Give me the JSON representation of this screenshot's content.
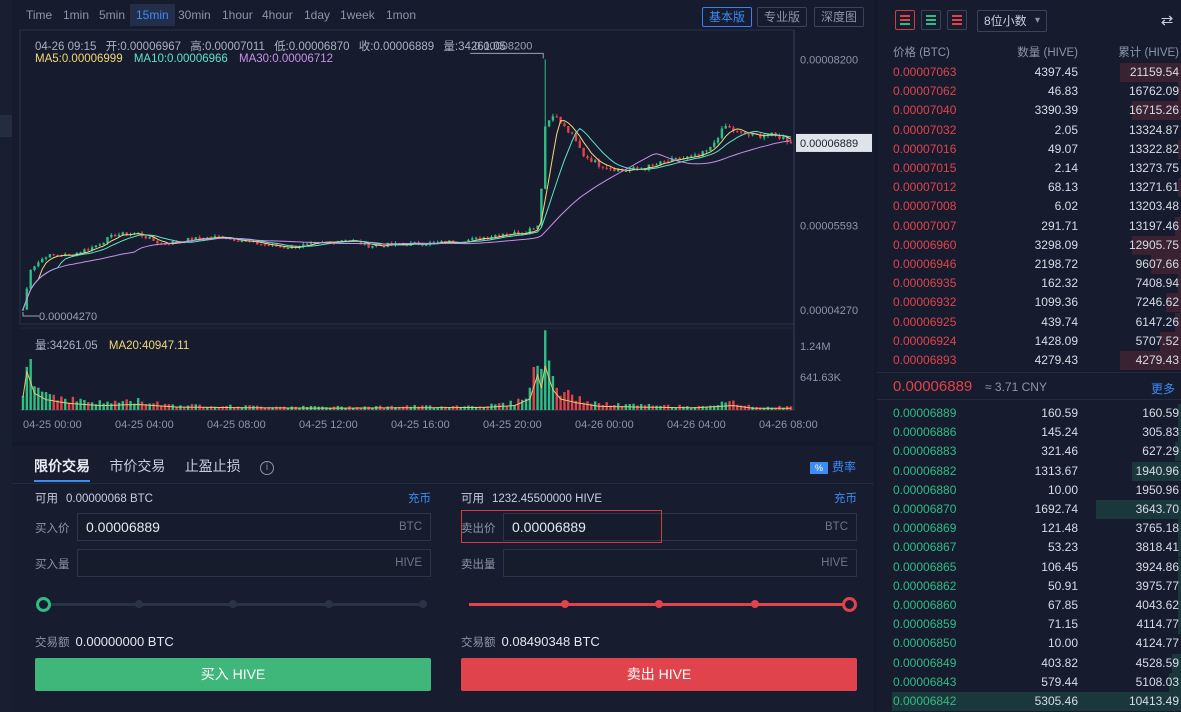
{
  "toolbar": {
    "timeframes": [
      "Time",
      "1min",
      "5min",
      "15min",
      "30min",
      "1hour",
      "4hour",
      "1day",
      "1week",
      "1mon"
    ],
    "active_timeframe": "15min",
    "view_modes": [
      "基本版",
      "专业版",
      "深度图"
    ],
    "active_view": "基本版"
  },
  "chart_info": {
    "datetime": "04-26 09:15",
    "open": "开:0.00006967",
    "high": "高:0.00007011",
    "low": "低:0.00006870",
    "close": "收:0.00006889",
    "volume": "量:34261.05",
    "ma5": "MA5:0.00006999",
    "ma10": "MA10:0.00006966",
    "ma30": "MA30:0.00006712",
    "vol_label": "量:34261.05",
    "vol_ma20": "MA20:40947.11"
  },
  "colors": {
    "up": "#2ebd85",
    "down": "#e0434b",
    "accent": "#3d8bf5",
    "ma5": "#f5d67a",
    "ma10": "#5ee3c8",
    "ma30": "#c98fec"
  },
  "chart_data": {
    "type": "candlestick",
    "price_axis_labels": [
      "0.00008200",
      "0.00006889",
      "0.00005593",
      "0.00004270"
    ],
    "price_axis_values": [
      8.2e-05,
      6.889e-05,
      5.593e-05,
      4.27e-05
    ],
    "volume_axis_labels": [
      "1.24M",
      "641.63K"
    ],
    "volume_axis_values": [
      1240000,
      641630
    ],
    "x_tick_labels": [
      "04-25 00:00",
      "04-25 04:00",
      "04-25 08:00",
      "04-25 12:00",
      "04-25 16:00",
      "04-25 20:00",
      "04-26 00:00",
      "04-26 04:00",
      "04-26 08:00"
    ],
    "annotation_max": "0.00008200",
    "annotation_min": "0.00004270",
    "current_price_tag": "0.00006889",
    "ylim": [
      4.05e-05,
      8.66e-05
    ],
    "close_key": [
      [
        0,
        4.28e-05
      ],
      [
        2,
        4.92e-05
      ],
      [
        6,
        5.12e-05
      ],
      [
        12,
        5.13e-05
      ],
      [
        18,
        5.25e-05
      ],
      [
        24,
        5.45e-05
      ],
      [
        30,
        5.47e-05
      ],
      [
        36,
        5.3e-05
      ],
      [
        44,
        5.38e-05
      ],
      [
        52,
        5.42e-05
      ],
      [
        60,
        5.32e-05
      ],
      [
        68,
        5.25e-05
      ],
      [
        76,
        5.3e-05
      ],
      [
        84,
        5.38e-05
      ],
      [
        90,
        5.28e-05
      ],
      [
        100,
        5.3e-05
      ],
      [
        110,
        5.33e-05
      ],
      [
        118,
        5.38e-05
      ],
      [
        125,
        5.47e-05
      ],
      [
        130,
        5.48e-05
      ],
      [
        134,
        5.6e-05
      ],
      [
        135,
        6.2e-05
      ],
      [
        136,
        7.15e-05
      ],
      [
        138,
        7.35e-05
      ],
      [
        140,
        7.2e-05
      ],
      [
        143,
        7e-05
      ],
      [
        146,
        6.7e-05
      ],
      [
        150,
        6.55e-05
      ],
      [
        156,
        6.45e-05
      ],
      [
        162,
        6.5e-05
      ],
      [
        168,
        6.6e-05
      ],
      [
        172,
        6.65e-05
      ],
      [
        176,
        6.68e-05
      ],
      [
        179,
        6.8e-05
      ],
      [
        181,
        7e-05
      ],
      [
        183,
        7.15e-05
      ],
      [
        186,
        7.05e-05
      ],
      [
        190,
        7e-05
      ],
      [
        194,
        7.02e-05
      ],
      [
        198,
        6.97e-05
      ],
      [
        200,
        6.89e-05
      ]
    ],
    "vol_key": [
      [
        0,
        0.35
      ],
      [
        1,
        1.05
      ],
      [
        3,
        0.45
      ],
      [
        6,
        0.28
      ],
      [
        12,
        0.18
      ],
      [
        20,
        0.12
      ],
      [
        30,
        0.15
      ],
      [
        40,
        0.08
      ],
      [
        60,
        0.06
      ],
      [
        80,
        0.05
      ],
      [
        100,
        0.06
      ],
      [
        120,
        0.07
      ],
      [
        128,
        0.12
      ],
      [
        132,
        0.3
      ],
      [
        134,
        0.95
      ],
      [
        135,
        0.6
      ],
      [
        136,
        1.2
      ],
      [
        137,
        0.85
      ],
      [
        138,
        0.55
      ],
      [
        140,
        0.3
      ],
      [
        144,
        0.2
      ],
      [
        150,
        0.1
      ],
      [
        160,
        0.08
      ],
      [
        175,
        0.06
      ],
      [
        185,
        0.12
      ],
      [
        190,
        0.05
      ],
      [
        200,
        0.05
      ]
    ]
  },
  "trade": {
    "tabs": [
      "限价交易",
      "市价交易",
      "止盈止损"
    ],
    "fee_icon": "%",
    "fee_label": "费率",
    "buy": {
      "avail_label": "可用",
      "avail_value": "0.00000068",
      "avail_unit": "BTC",
      "recharge": "充币",
      "price_label": "买入价",
      "price_value": "0.00006889",
      "price_unit": "BTC",
      "qty_label": "买入量",
      "qty_value": "",
      "qty_unit": "HIVE",
      "slider_fraction": 0,
      "amount_label": "交易额",
      "amount_value": "0.00000000 BTC",
      "button": "买入 HIVE"
    },
    "sell": {
      "avail_label": "可用",
      "avail_value": "1232.45500000",
      "avail_unit": "HIVE",
      "recharge": "充币",
      "price_label": "卖出价",
      "price_value": "0.00006889",
      "price_unit": "BTC",
      "qty_label": "卖出量",
      "qty_value": "",
      "qty_unit": "HIVE",
      "slider_fraction": 1,
      "amount_label": "交易额",
      "amount_value": "0.08490348 BTC",
      "button": "卖出 HIVE"
    }
  },
  "orderbook": {
    "decimals": "8位小数",
    "headers": {
      "price": "价格 (BTC)",
      "qty": "数量 (HIVE)",
      "cum": "累计 (HIVE)"
    },
    "asks": [
      {
        "price": "0.00007063",
        "qty": "4397.45",
        "cum": "21159.54",
        "depth": 0.2
      },
      {
        "price": "0.00007062",
        "qty": "46.83",
        "cum": "16762.09",
        "depth": 0.01
      },
      {
        "price": "0.00007040",
        "qty": "3390.39",
        "cum": "16715.26",
        "depth": 0.16
      },
      {
        "price": "0.00007032",
        "qty": "2.05",
        "cum": "13324.87",
        "depth": 0.0
      },
      {
        "price": "0.00007016",
        "qty": "49.07",
        "cum": "13322.82",
        "depth": 0.01
      },
      {
        "price": "0.00007015",
        "qty": "2.14",
        "cum": "13273.75",
        "depth": 0.0
      },
      {
        "price": "0.00007012",
        "qty": "68.13",
        "cum": "13271.61",
        "depth": 0.01
      },
      {
        "price": "0.00007008",
        "qty": "6.02",
        "cum": "13203.48",
        "depth": 0.0
      },
      {
        "price": "0.00007007",
        "qty": "291.71",
        "cum": "13197.46",
        "depth": 0.02
      },
      {
        "price": "0.00006960",
        "qty": "3298.09",
        "cum": "12905.75",
        "depth": 0.16
      },
      {
        "price": "0.00006946",
        "qty": "2198.72",
        "cum": "9607.66",
        "depth": 0.1
      },
      {
        "price": "0.00006935",
        "qty": "162.32",
        "cum": "7408.94",
        "depth": 0.01
      },
      {
        "price": "0.00006932",
        "qty": "1099.36",
        "cum": "7246.62",
        "depth": 0.05
      },
      {
        "price": "0.00006925",
        "qty": "439.74",
        "cum": "6147.26",
        "depth": 0.02
      },
      {
        "price": "0.00006924",
        "qty": "1428.09",
        "cum": "5707.52",
        "depth": 0.07
      },
      {
        "price": "0.00006893",
        "qty": "4279.43",
        "cum": "4279.43",
        "depth": 0.2
      }
    ],
    "last_price": "0.00006889",
    "last_cny": "≈ 3.71 CNY",
    "more": "更多",
    "bids": [
      {
        "price": "0.00006889",
        "qty": "160.59",
        "cum": "160.59",
        "depth": 0.01
      },
      {
        "price": "0.00006886",
        "qty": "145.24",
        "cum": "305.83",
        "depth": 0.01
      },
      {
        "price": "0.00006883",
        "qty": "321.46",
        "cum": "627.29",
        "depth": 0.02
      },
      {
        "price": "0.00006882",
        "qty": "1313.67",
        "cum": "1940.96",
        "depth": 0.16
      },
      {
        "price": "0.00006880",
        "qty": "10.00",
        "cum": "1950.96",
        "depth": 0.0
      },
      {
        "price": "0.00006870",
        "qty": "1692.74",
        "cum": "3643.70",
        "depth": 0.28
      },
      {
        "price": "0.00006869",
        "qty": "121.48",
        "cum": "3765.18",
        "depth": 0.01
      },
      {
        "price": "0.00006867",
        "qty": "53.23",
        "cum": "3818.41",
        "depth": 0.01
      },
      {
        "price": "0.00006865",
        "qty": "106.45",
        "cum": "3924.86",
        "depth": 0.01
      },
      {
        "price": "0.00006862",
        "qty": "50.91",
        "cum": "3975.77",
        "depth": 0.01
      },
      {
        "price": "0.00006860",
        "qty": "67.85",
        "cum": "4043.62",
        "depth": 0.01
      },
      {
        "price": "0.00006859",
        "qty": "71.15",
        "cum": "4114.77",
        "depth": 0.01
      },
      {
        "price": "0.00006850",
        "qty": "10.00",
        "cum": "4124.77",
        "depth": 0.0
      },
      {
        "price": "0.00006849",
        "qty": "403.82",
        "cum": "4528.59",
        "depth": 0.03
      },
      {
        "price": "0.00006843",
        "qty": "579.44",
        "cum": "5108.03",
        "depth": 0.04
      },
      {
        "price": "0.00006842",
        "qty": "5305.46",
        "cum": "10413.49",
        "depth": 0.95
      }
    ]
  }
}
